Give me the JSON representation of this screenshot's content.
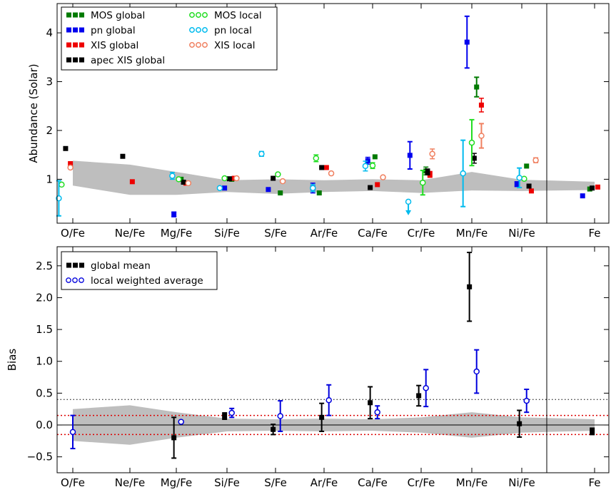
{
  "colors": {
    "mos_global": "#007a00",
    "pn_global": "#0000ee",
    "xis_global": "#ee0000",
    "apec_global": "#000000",
    "mos_local": "#22dd22",
    "pn_local": "#00bbee",
    "xis_local": "#f08060",
    "band": "#bebebe",
    "bias_global": "#000000",
    "bias_local": "#0000dd",
    "ref_red": "#dd0000"
  },
  "chart_data": [
    {
      "type": "scatter",
      "ylabel": "Abundance (Solar)",
      "categories": [
        "O/Fe",
        "Ne/Fe",
        "Mg/Fe",
        "Si/Fe",
        "S/Fe",
        "Ar/Fe",
        "Ca/Fe",
        "Cr/Fe",
        "Mn/Fe",
        "Ni/Fe",
        "Fe"
      ],
      "ylim": [
        0.1,
        4.6
      ],
      "yticks": [
        "1",
        "2",
        "3",
        "4"
      ],
      "legend_position": "top-left",
      "legend": [
        {
          "label": "MOS global",
          "key": "mos_global",
          "marker": "square"
        },
        {
          "label": "pn global",
          "key": "pn_global",
          "marker": "square"
        },
        {
          "label": "XIS global",
          "key": "xis_global",
          "marker": "square"
        },
        {
          "label": "apec XIS global",
          "key": "apec_global",
          "marker": "square"
        },
        {
          "label": "MOS local",
          "key": "mos_local",
          "marker": "circle"
        },
        {
          "label": "pn local",
          "key": "pn_local",
          "marker": "circle"
        },
        {
          "label": "XIS local",
          "key": "xis_local",
          "marker": "circle"
        }
      ],
      "band": {
        "upper": [
          1.38,
          1.3,
          1.15,
          0.98,
          1.0,
          0.98,
          1.0,
          0.98,
          1.15,
          0.99,
          0.95
        ],
        "lower": [
          0.87,
          0.68,
          0.68,
          0.74,
          0.7,
          0.74,
          0.76,
          0.72,
          0.77,
          0.76,
          0.78
        ]
      },
      "series": [
        {
          "key": "mos_global",
          "marker": "square",
          "points": [
            {
              "i": 2,
              "dx": 0.12,
              "y": 1.0,
              "err": 0.03
            },
            {
              "i": 3,
              "dx": 0.12,
              "y": 1.0,
              "err": 0.03
            },
            {
              "i": 4,
              "dx": 0.12,
              "y": 0.72,
              "err": 0.02
            },
            {
              "i": 5,
              "dx": -0.12,
              "y": 0.72,
              "err": 0.02
            },
            {
              "i": 6,
              "dx": 0.06,
              "y": 1.46,
              "err": 0.03
            },
            {
              "i": 7,
              "dx": 0.12,
              "y": 1.17,
              "err": 0.08
            },
            {
              "i": 8,
              "dx": 0.12,
              "y": 2.89,
              "err": 0.2
            },
            {
              "i": 9,
              "dx": 0.12,
              "y": 1.27,
              "err": 0.03
            },
            {
              "i": 10,
              "dx": -0.12,
              "y": 0.8,
              "err": 0.02
            }
          ]
        },
        {
          "key": "pn_global",
          "marker": "square",
          "points": [
            {
              "i": 2,
              "dx": -0.06,
              "y": 0.28,
              "err": 0.05
            },
            {
              "i": 3,
              "dx": -0.06,
              "y": 0.82,
              "err": 0.03
            },
            {
              "i": 4,
              "dx": -0.18,
              "y": 0.79,
              "err": 0.02
            },
            {
              "i": 5,
              "dx": -0.28,
              "y": 0.82,
              "err": 0.1
            },
            {
              "i": 6,
              "dx": -0.12,
              "y": 1.38,
              "err": 0.07
            },
            {
              "i": 7,
              "dx": -0.28,
              "y": 1.49,
              "err": 0.28
            },
            {
              "i": 8,
              "dx": -0.12,
              "y": 3.81,
              "err": 0.53
            },
            {
              "i": 9,
              "dx": -0.12,
              "y": 0.9,
              "err": 0.05
            },
            {
              "i": 10,
              "dx": -0.3,
              "y": 0.66,
              "err": 0.02
            }
          ]
        },
        {
          "key": "xis_global",
          "marker": "square",
          "points": [
            {
              "i": 0,
              "dx": -0.06,
              "y": 1.32,
              "err": 0.03
            },
            {
              "i": 1,
              "dx": 0.06,
              "y": 0.95,
              "err": 0.02
            },
            {
              "i": 2,
              "dx": 0.24,
              "y": 0.92,
              "err": 0.02
            },
            {
              "i": 3,
              "dx": 0.18,
              "y": 1.02,
              "err": 0.02
            },
            {
              "i": 5,
              "dx": 0.06,
              "y": 1.24,
              "err": 0.03
            },
            {
              "i": 6,
              "dx": 0.12,
              "y": 0.89,
              "err": 0.03
            },
            {
              "i": 7,
              "dx": 0.22,
              "y": 1.1,
              "err": 0.06
            },
            {
              "i": 8,
              "dx": 0.24,
              "y": 2.52,
              "err": 0.14
            },
            {
              "i": 9,
              "dx": 0.24,
              "y": 0.76,
              "err": 0.02
            },
            {
              "i": 10,
              "dx": 0.08,
              "y": 0.84,
              "err": 0.02
            }
          ]
        },
        {
          "key": "apec_global",
          "marker": "square",
          "points": [
            {
              "i": 0,
              "dx": -0.18,
              "y": 1.63,
              "err": 0.02
            },
            {
              "i": 1,
              "dx": -0.18,
              "y": 1.47,
              "err": 0.02
            },
            {
              "i": 2,
              "dx": 0.18,
              "y": 0.94,
              "err": 0.02
            },
            {
              "i": 3,
              "dx": 0.06,
              "y": 1.01,
              "err": 0.02
            },
            {
              "i": 4,
              "dx": -0.06,
              "y": 1.02,
              "err": 0.02
            },
            {
              "i": 5,
              "dx": -0.06,
              "y": 1.24,
              "err": 0.02
            },
            {
              "i": 6,
              "dx": -0.06,
              "y": 0.83,
              "err": 0.02
            },
            {
              "i": 7,
              "dx": 0.16,
              "y": 1.15,
              "err": 0.06
            },
            {
              "i": 8,
              "dx": 0.06,
              "y": 1.43,
              "err": 0.1
            },
            {
              "i": 9,
              "dx": 0.18,
              "y": 0.86,
              "err": 0.02
            },
            {
              "i": 10,
              "dx": -0.06,
              "y": 0.82,
              "err": 0.02
            }
          ]
        },
        {
          "key": "mos_local",
          "marker": "circle",
          "points": [
            {
              "i": 0,
              "dx": -0.28,
              "y": 0.89,
              "err": 0.02
            },
            {
              "i": 2,
              "dx": 0.06,
              "y": 1.0,
              "err": 0.03
            },
            {
              "i": 3,
              "dx": -0.06,
              "y": 1.02,
              "err": 0.03
            },
            {
              "i": 4,
              "dx": 0.06,
              "y": 1.1,
              "err": 0.03
            },
            {
              "i": 5,
              "dx": -0.2,
              "y": 1.43,
              "err": 0.07
            },
            {
              "i": 6,
              "dx": 0.0,
              "y": 1.28,
              "err": 0.06
            },
            {
              "i": 7,
              "dx": 0.04,
              "y": 0.93,
              "err": 0.25
            },
            {
              "i": 8,
              "dx": 0.0,
              "y": 1.75,
              "err": 0.47
            },
            {
              "i": 9,
              "dx": 0.06,
              "y": 1.01,
              "err": 0.04
            }
          ]
        },
        {
          "key": "pn_local",
          "marker": "circle",
          "points": [
            {
              "i": 0,
              "dx": -0.35,
              "y": 0.61,
              "err": 0.36
            },
            {
              "i": 2,
              "dx": -0.1,
              "y": 1.07,
              "err": 0.07
            },
            {
              "i": 3,
              "dx": -0.18,
              "y": 0.82,
              "err": 0.03
            },
            {
              "i": 4,
              "dx": -0.35,
              "y": 1.52,
              "err": 0.05
            },
            {
              "i": 5,
              "dx": -0.28,
              "y": 0.82,
              "err": 0.07
            },
            {
              "i": 6,
              "dx": -0.18,
              "y": 1.27,
              "err": 0.1
            },
            {
              "i": 7,
              "dx": -0.32,
              "y": 0.54,
              "err": 0.05,
              "upper_limit": true
            },
            {
              "i": 8,
              "dx": -0.22,
              "y": 1.12,
              "err": 0.68
            },
            {
              "i": 9,
              "dx": -0.06,
              "y": 1.03,
              "err": 0.2
            }
          ]
        },
        {
          "key": "xis_local",
          "marker": "circle",
          "points": [
            {
              "i": 0,
              "dx": -0.06,
              "y": 1.24,
              "err": 0.03
            },
            {
              "i": 2,
              "dx": 0.3,
              "y": 0.92,
              "err": 0.02
            },
            {
              "i": 3,
              "dx": 0.24,
              "y": 1.02,
              "err": 0.03
            },
            {
              "i": 4,
              "dx": 0.18,
              "y": 0.96,
              "err": 0.03
            },
            {
              "i": 5,
              "dx": 0.18,
              "y": 1.12,
              "err": 0.03
            },
            {
              "i": 6,
              "dx": 0.26,
              "y": 1.04,
              "err": 0.03
            },
            {
              "i": 7,
              "dx": 0.28,
              "y": 1.52,
              "err": 0.1
            },
            {
              "i": 8,
              "dx": 0.24,
              "y": 1.89,
              "err": 0.25
            },
            {
              "i": 9,
              "dx": 0.35,
              "y": 1.39,
              "err": 0.05
            }
          ]
        }
      ]
    },
    {
      "type": "scatter",
      "ylabel": "Bias",
      "categories": [
        "O/Fe",
        "Ne/Fe",
        "Mg/Fe",
        "Si/Fe",
        "S/Fe",
        "Ar/Fe",
        "Ca/Fe",
        "Cr/Fe",
        "Mn/Fe",
        "Ni/Fe",
        "Fe"
      ],
      "ylim": [
        -0.75,
        2.8
      ],
      "yticks": [
        "−0.5",
        "0.0",
        "0.5",
        "1.0",
        "1.5",
        "2.0",
        "2.5"
      ],
      "legend_position": "top-left",
      "legend": [
        {
          "label": "global mean",
          "key": "bias_global",
          "marker": "square"
        },
        {
          "label": "local weighted average",
          "key": "bias_local",
          "marker": "circle"
        }
      ],
      "reference_lines": {
        "zero": 0.0,
        "black_dotted": 0.4,
        "red_dotted": [
          0.15,
          -0.15
        ]
      },
      "band": {
        "upper": [
          0.25,
          0.31,
          0.2,
          0.1,
          0.09,
          0.1,
          0.09,
          0.12,
          0.2,
          0.12,
          0.09
        ],
        "lower": [
          -0.25,
          -0.31,
          -0.2,
          -0.1,
          -0.09,
          -0.1,
          -0.09,
          -0.12,
          -0.2,
          -0.12,
          -0.09
        ]
      },
      "series": [
        {
          "name": "global mean",
          "key": "bias_global",
          "marker": "square",
          "points": [
            {
              "i": 2,
              "dx": -0.06,
              "y": -0.2,
              "err": 0.32
            },
            {
              "i": 3,
              "dx": -0.06,
              "y": 0.14,
              "err": 0.05
            },
            {
              "i": 4,
              "dx": -0.06,
              "y": -0.07,
              "err": 0.08
            },
            {
              "i": 5,
              "dx": -0.06,
              "y": 0.12,
              "err": 0.22
            },
            {
              "i": 6,
              "dx": -0.06,
              "y": 0.35,
              "err": 0.25
            },
            {
              "i": 7,
              "dx": -0.06,
              "y": 0.46,
              "err": 0.16
            },
            {
              "i": 8,
              "dx": -0.06,
              "y": 2.17,
              "err": 0.54
            },
            {
              "i": 9,
              "dx": -0.06,
              "y": 0.02,
              "err": 0.21
            },
            {
              "i": 10,
              "dx": -0.06,
              "y": -0.1,
              "err": 0.05
            }
          ]
        },
        {
          "name": "local weighted average",
          "key": "bias_local",
          "marker": "circle",
          "points": [
            {
              "i": 0,
              "dx": 0.0,
              "y": -0.11,
              "err": 0.26
            },
            {
              "i": 2,
              "dx": 0.12,
              "y": 0.05,
              "err": 0.04
            },
            {
              "i": 3,
              "dx": 0.12,
              "y": 0.19,
              "err": 0.07
            },
            {
              "i": 4,
              "dx": 0.12,
              "y": 0.14,
              "err": 0.24
            },
            {
              "i": 5,
              "dx": 0.12,
              "y": 0.39,
              "err": 0.24
            },
            {
              "i": 6,
              "dx": 0.12,
              "y": 0.2,
              "err": 0.1
            },
            {
              "i": 7,
              "dx": 0.12,
              "y": 0.58,
              "err": 0.29
            },
            {
              "i": 8,
              "dx": 0.12,
              "y": 0.84,
              "err": 0.34
            },
            {
              "i": 9,
              "dx": 0.12,
              "y": 0.38,
              "err": 0.18
            }
          ]
        }
      ]
    }
  ]
}
